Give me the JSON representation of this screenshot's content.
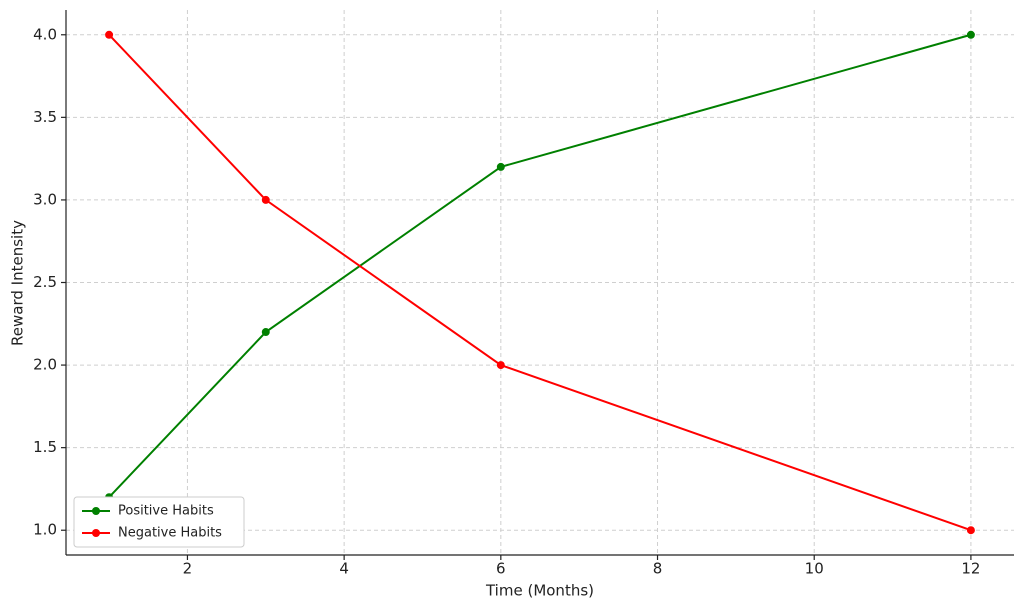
{
  "chart_data": {
    "type": "line",
    "x_label": "Time (Months)",
    "y_label": "Reward Intensity",
    "x": [
      1,
      3,
      6,
      12
    ],
    "series": [
      {
        "name": "Positive Habits",
        "color": "#008000",
        "values": [
          1.2,
          2.2,
          3.2,
          4.0
        ]
      },
      {
        "name": "Negative Habits",
        "color": "#ff0000",
        "values": [
          4.0,
          3.0,
          2.0,
          1.0
        ]
      }
    ],
    "xlim": [
      0.45,
      12.55
    ],
    "ylim": [
      0.85,
      4.15
    ],
    "xticks": [
      2,
      4,
      6,
      8,
      10,
      12
    ],
    "yticks": [
      {
        "value": 1,
        "label": "1.0"
      },
      1.5,
      {
        "value": 2,
        "label": "2.0"
      },
      2.5,
      {
        "value": 3,
        "label": "3.0"
      },
      3.5,
      {
        "value": 4,
        "label": "4.0"
      }
    ],
    "grid": true,
    "legend": "lower left"
  }
}
